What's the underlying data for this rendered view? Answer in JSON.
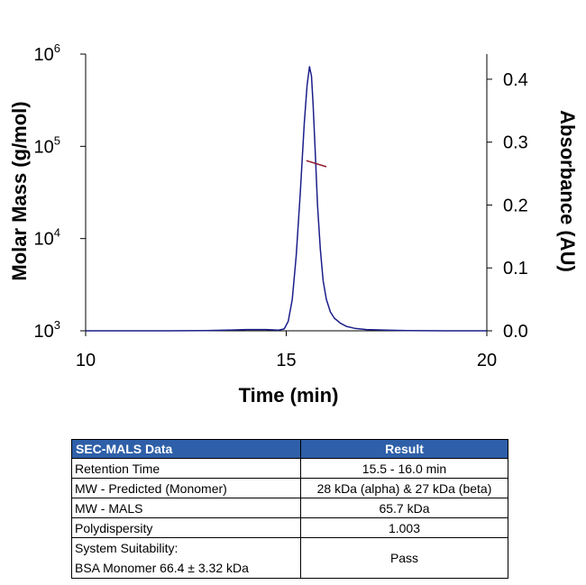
{
  "chart_data": {
    "type": "line",
    "xlabel": "Time (min)",
    "ylabel_left": "Molar Mass (g/mol)",
    "ylabel_right": "Absorbance (AU)",
    "xlim": [
      10,
      20
    ],
    "x_ticks": [
      "10",
      "15",
      "20"
    ],
    "y_left_scale": "log",
    "y_left_lim": [
      1000,
      1000000
    ],
    "y_left_ticks": [
      {
        "base": "10",
        "exp": "3"
      },
      {
        "base": "10",
        "exp": "4"
      },
      {
        "base": "10",
        "exp": "5"
      },
      {
        "base": "10",
        "exp": "6"
      }
    ],
    "y_right_lim": [
      0,
      0.44
    ],
    "y_right_ticks": [
      "0.0",
      "0.1",
      "0.2",
      "0.3",
      "0.4"
    ],
    "grid": false,
    "series": [
      {
        "axis": "right",
        "color": "#1b1f8a",
        "x": [
          10.0,
          11.0,
          12.0,
          13.0,
          13.5,
          14.0,
          14.5,
          14.8,
          14.95,
          15.05,
          15.15,
          15.25,
          15.35,
          15.45,
          15.52,
          15.58,
          15.63,
          15.67,
          15.72,
          15.78,
          15.85,
          15.92,
          16.0,
          16.1,
          16.2,
          16.35,
          16.5,
          16.7,
          17.0,
          17.5,
          18.0,
          19.0,
          20.0
        ],
        "y": [
          0.0,
          0.0,
          0.0,
          0.0005,
          0.001,
          0.002,
          0.002,
          0.001,
          0.003,
          0.015,
          0.05,
          0.12,
          0.22,
          0.33,
          0.39,
          0.42,
          0.405,
          0.36,
          0.29,
          0.2,
          0.13,
          0.08,
          0.05,
          0.03,
          0.02,
          0.012,
          0.007,
          0.004,
          0.002,
          0.001,
          0.0005,
          0.0,
          0.0
        ]
      },
      {
        "axis": "left",
        "color": "#8b1a2b",
        "x": [
          15.5,
          16.0
        ],
        "y": [
          70000,
          60000
        ]
      }
    ]
  },
  "table": {
    "headers": [
      "SEC-MALS Data",
      "Result"
    ],
    "rows": [
      {
        "label": "Retention Time",
        "value": "15.5 - 16.0 min"
      },
      {
        "label": "MW - Predicted (Monomer)",
        "value": "28 kDa (alpha) & 27 kDa (beta)"
      },
      {
        "label": "MW - MALS",
        "value": "65.7 kDa"
      },
      {
        "label": "Polydispersity",
        "value": "1.003"
      }
    ],
    "last_row": {
      "label_line1": "System Suitability:",
      "label_line2": "BSA Monomer 66.4 ± 3.32 kDa",
      "value": "Pass"
    }
  }
}
